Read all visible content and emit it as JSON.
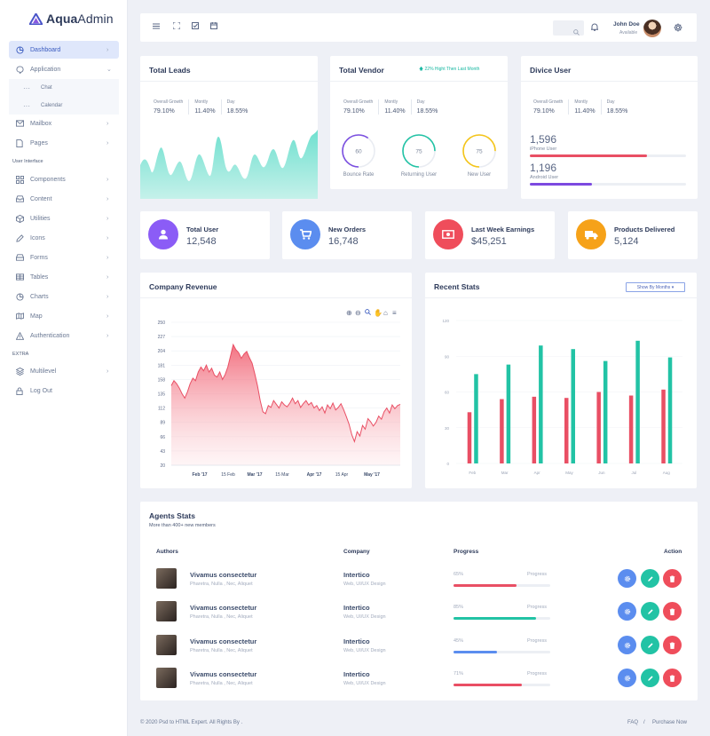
{
  "app": {
    "brand_a": "Aqua",
    "brand_b": "Admin"
  },
  "sidebar": {
    "items": [
      {
        "label": "Dashboard",
        "icon": "pie-chart-icon"
      },
      {
        "label": "Application",
        "icon": "chat-bubble-icon"
      },
      {
        "label": "Chat"
      },
      {
        "label": "Calendar"
      },
      {
        "label": "Mailbox",
        "icon": "mail-icon"
      },
      {
        "label": "Pages",
        "icon": "page-icon"
      },
      {
        "label": "Components",
        "icon": "grid-icon"
      },
      {
        "label": "Content",
        "icon": "inbox-icon"
      },
      {
        "label": "Utilities",
        "icon": "box-icon"
      },
      {
        "label": "Icons",
        "icon": "pen-icon"
      },
      {
        "label": "Forms",
        "icon": "form-icon"
      },
      {
        "label": "Tables",
        "icon": "table-icon"
      },
      {
        "label": "Charts",
        "icon": "chart-icon"
      },
      {
        "label": "Map",
        "icon": "map-icon"
      },
      {
        "label": "Authentication",
        "icon": "warning-icon"
      },
      {
        "label": "Multilevel",
        "icon": "layers-icon"
      },
      {
        "label": "Log Out",
        "icon": "lock-icon"
      }
    ],
    "section_ui": "User Interface",
    "section_extra": "EXTRA"
  },
  "topbar": {
    "user_name": "John Doe",
    "user_status": "Available"
  },
  "total_leads": {
    "title": "Total Leads",
    "stats": [
      {
        "label": "Overall Growth",
        "value": "79.10%"
      },
      {
        "label": "Montly",
        "value": "11.40%"
      },
      {
        "label": "Day",
        "value": "18.55%"
      }
    ]
  },
  "total_vendor": {
    "title": "Total Vendor",
    "badge": "22% Hight Then Last Month",
    "stats": [
      {
        "label": "Overall Growth",
        "value": "79.10%"
      },
      {
        "label": "Montly",
        "value": "11.40%"
      },
      {
        "label": "Day",
        "value": "18.55%"
      }
    ],
    "rings": [
      {
        "value": "60",
        "label": "Bounce Rate",
        "color": "#7b4fe0",
        "pct": 0.6
      },
      {
        "value": "75",
        "label": "Returning User",
        "color": "#22c3a5",
        "pct": 0.75
      },
      {
        "value": "75",
        "label": "New User",
        "color": "#f5c518",
        "pct": 0.75
      }
    ]
  },
  "device_user": {
    "title": "Divice User",
    "stats": [
      {
        "label": "Overall Growth",
        "value": "79.10%"
      },
      {
        "label": "Montly",
        "value": "11.40%"
      },
      {
        "label": "Day",
        "value": "18.55%"
      }
    ],
    "iphone": {
      "value": "1,596",
      "label": "iPhone User",
      "pct": 0.75,
      "color": "#e94f64"
    },
    "android": {
      "value": "1,196",
      "label": "Android User",
      "pct": 0.4,
      "color": "#7c49e0"
    }
  },
  "kpis": [
    {
      "title": "Total User",
      "value": "12,548",
      "color": "#8b5cf6",
      "icon": "user-icon"
    },
    {
      "title": "New Orders",
      "value": "16,748",
      "color": "#5b8def",
      "icon": "cart-icon"
    },
    {
      "title": "Last Week Earnings",
      "value": "$45,251",
      "color": "#ef4d5b",
      "icon": "money-icon"
    },
    {
      "title": "Products Delivered",
      "value": "5,124",
      "color": "#f6a219",
      "icon": "truck-icon"
    }
  ],
  "revenue": {
    "title": "Company Revenue"
  },
  "recent": {
    "title": "Recent Stats",
    "select": "Show By Months ▾"
  },
  "chart_data": [
    {
      "type": "area",
      "title": "Company Revenue",
      "ylim": [
        20,
        250
      ],
      "yticks": [
        "250",
        "227",
        "204",
        "181",
        "158",
        "135",
        "112",
        "89",
        "66",
        "43",
        "20"
      ],
      "xticks": [
        "Feb '17",
        "15 Feb",
        "Mar '17",
        "15 Mar",
        "Apr '17",
        "15 Apr",
        "May '17"
      ],
      "values": [
        148,
        156,
        151,
        144,
        135,
        128,
        138,
        151,
        160,
        156,
        170,
        178,
        172,
        181,
        170,
        176,
        165,
        162,
        170,
        158,
        166,
        178,
        196,
        214,
        206,
        201,
        192,
        199,
        203,
        193,
        184,
        167,
        148,
        124,
        106,
        103,
        116,
        113,
        124,
        118,
        112,
        122,
        117,
        114,
        120,
        128,
        119,
        124,
        113,
        119,
        124,
        117,
        121,
        112,
        116,
        108,
        114,
        104,
        117,
        111,
        120,
        109,
        113,
        119,
        109,
        98,
        86,
        69,
        58,
        74,
        67,
        84,
        78,
        95,
        90,
        83,
        89,
        99,
        94,
        106,
        112,
        104,
        117,
        111,
        116,
        118
      ]
    },
    {
      "type": "bar",
      "title": "Recent Stats",
      "categories": [
        "Feb",
        "Mar",
        "Apr",
        "May",
        "Jun",
        "Jul",
        "Aug"
      ],
      "ylim": [
        0,
        120
      ],
      "yticks": [
        "0",
        "30",
        "60",
        "90",
        "120"
      ],
      "series": [
        {
          "color": "#e94f64",
          "values": [
            43,
            54,
            56,
            55,
            60,
            57,
            62
          ]
        },
        {
          "color": "#22c3a5",
          "values": [
            75,
            83,
            99,
            96,
            86,
            103,
            89
          ]
        }
      ]
    }
  ],
  "agents": {
    "title": "Agents Stats",
    "subtitle": "More than 400+ new members",
    "headers": {
      "authors": "Authors",
      "company": "Company",
      "progress": "Progress",
      "action": "Action"
    },
    "rows": [
      {
        "name": "Vivamus consectetur",
        "sub": "Pharetra, Nulla , Nec, Aliquet",
        "company": "Intertico",
        "company_sub": "Web, UI/UX Design",
        "pct_label": "65%",
        "pct": 0.65,
        "color": "#e94f64",
        "progress_label": "Progress"
      },
      {
        "name": "Vivamus consectetur",
        "sub": "Pharetra, Nulla , Nec, Aliquet",
        "company": "Intertico",
        "company_sub": "Web, UI/UX Design",
        "pct_label": "85%",
        "pct": 0.85,
        "color": "#22c3a5",
        "progress_label": "Progress"
      },
      {
        "name": "Vivamus consectetur",
        "sub": "Pharetra, Nulla , Nec, Aliquet",
        "company": "Intertico",
        "company_sub": "Web, UI/UX Design",
        "pct_label": "45%",
        "pct": 0.45,
        "color": "#5b8def",
        "progress_label": "Progress"
      },
      {
        "name": "Vivamus consectetur",
        "sub": "Pharetra, Nulla , Nec, Aliquet",
        "company": "Intertico",
        "company_sub": "Web, UI/UX Design",
        "pct_label": "71%",
        "pct": 0.71,
        "color": "#e94f64",
        "progress_label": "Progress"
      }
    ]
  },
  "footer": {
    "copyright": "© 2020 Psd to HTML Expert. All Rights By .",
    "faq": "FAQ",
    "sep": "/",
    "purchase": "Purchase Now"
  }
}
